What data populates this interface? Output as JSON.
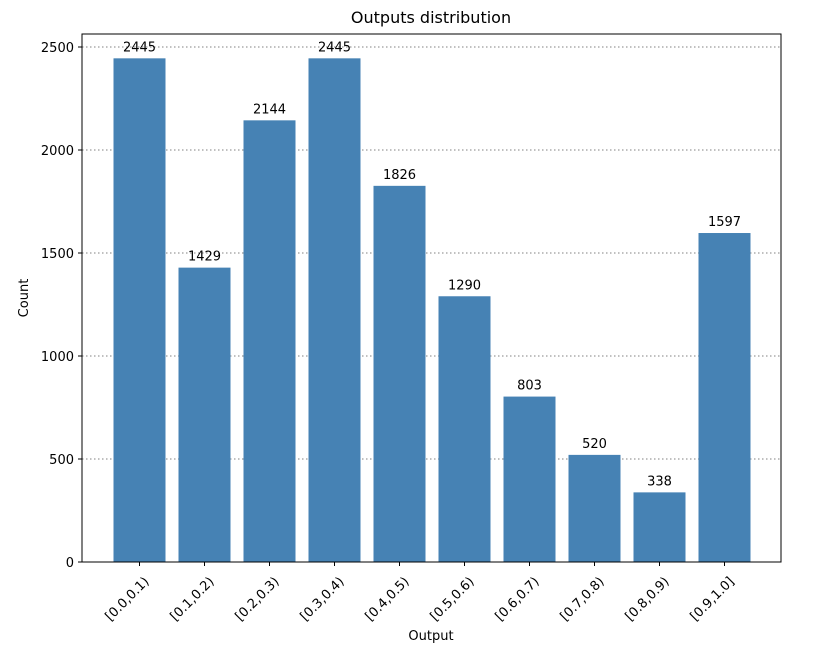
{
  "chart_data": {
    "type": "bar",
    "title": "Outputs distribution",
    "xlabel": "Output",
    "ylabel": "Count",
    "categories": [
      "[0.0,0.1)",
      "[0.1,0.2)",
      "[0.2,0.3)",
      "[0.3,0.4)",
      "[0.4,0.5)",
      "[0.5,0.6)",
      "[0.6,0.7)",
      "[0.7,0.8)",
      "[0.8,0.9)",
      "[0.9,1.0]"
    ],
    "values": [
      2445,
      1429,
      2144,
      2445,
      1826,
      1290,
      803,
      520,
      338,
      1597
    ],
    "ylim": [
      0,
      2600
    ],
    "yticks": [
      0,
      500,
      1000,
      1500,
      2000,
      2500
    ],
    "grid": true,
    "bar_color": "#4682b4",
    "show_data_labels": true
  }
}
